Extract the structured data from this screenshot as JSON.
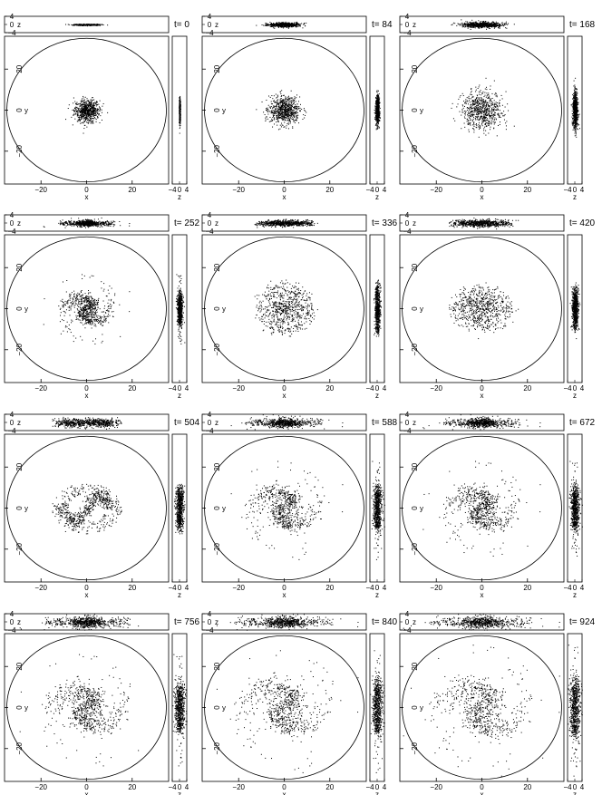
{
  "chart_data": {
    "type": "scatter",
    "layout": "4 rows x 3 columns of snapshot panels",
    "panels": [
      {
        "time_label": "t= 0",
        "morphology": "compact-blob",
        "radius": 5,
        "thickness": 0.15
      },
      {
        "time_label": "t= 84",
        "morphology": "blob",
        "radius": 6,
        "thickness": 0.5
      },
      {
        "time_label": "t= 168",
        "morphology": "blob",
        "radius": 8,
        "thickness": 0.7
      },
      {
        "time_label": "t= 252",
        "morphology": "spiral",
        "radius": 11,
        "thickness": 0.7
      },
      {
        "time_label": "t= 336",
        "morphology": "rings",
        "radius": 13,
        "thickness": 0.7
      },
      {
        "time_label": "t= 420",
        "morphology": "rings-tilted",
        "radius": 14,
        "thickness": 0.8
      },
      {
        "time_label": "t= 504",
        "morphology": "S-bar",
        "radius": 14,
        "thickness": 1.0
      },
      {
        "time_label": "t= 588",
        "morphology": "spiral",
        "radius": 15,
        "thickness": 1.1
      },
      {
        "time_label": "t= 672",
        "morphology": "spiral",
        "radius": 15,
        "thickness": 1.1
      },
      {
        "time_label": "t= 756",
        "morphology": "spiral",
        "radius": 17,
        "thickness": 1.3
      },
      {
        "time_label": "t= 840",
        "morphology": "spiral",
        "radius": 19,
        "thickness": 1.3
      },
      {
        "time_label": "t= 924",
        "morphology": "spiral",
        "radius": 20,
        "thickness": 1.4
      }
    ],
    "xy_panel": {
      "xlabel": "x",
      "ylabel": "y",
      "xlim": [
        -36,
        36
      ],
      "ylim": [
        -36,
        36
      ],
      "xticks": [
        -20,
        0,
        20
      ],
      "yticks": [
        20,
        0,
        -20
      ],
      "xtick_labels": [
        "−20",
        "0",
        "20"
      ],
      "ytick_labels": [
        "20",
        "0",
        "−20"
      ],
      "boundary_circle_radius": 35
    },
    "xz_panel": {
      "ylabel": "z",
      "ylim": [
        -4,
        4
      ],
      "ytick_labels": [
        "4",
        "0",
        "−4"
      ]
    },
    "zy_panel": {
      "xlabel": "z",
      "xlim": [
        -4,
        4
      ],
      "xtick_labels": [
        "−4",
        "0",
        "4"
      ]
    },
    "grid": false,
    "point_color": "#000000",
    "circle_color": "#000000"
  }
}
